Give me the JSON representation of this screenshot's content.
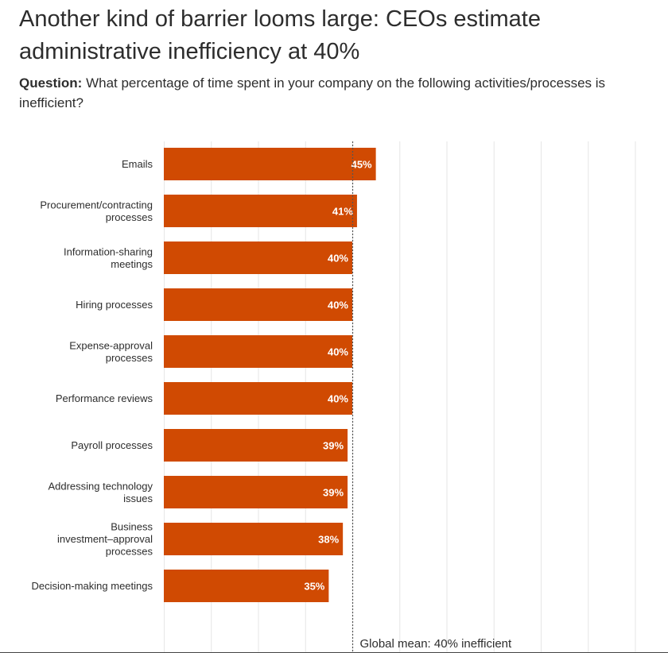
{
  "title": "Another kind of barrier looms large: CEOs estimate administrative inefficiency at 40%",
  "subtitle": {
    "label": "Question:",
    "text": "What percentage of time spent in your company on the following activities/processes is inefficient?"
  },
  "colors": {
    "bar": "#d04a02",
    "grid": "#e6e6e6",
    "mean_line": "#555555",
    "value_text": "#ffffff"
  },
  "chart_data": {
    "type": "bar",
    "orientation": "horizontal",
    "title": "Another kind of barrier looms large: CEOs estimate administrative inefficiency at 40%",
    "xlabel": "",
    "ylabel": "",
    "xlim": [
      0,
      100
    ],
    "grid": true,
    "categories": [
      [
        "Emails"
      ],
      [
        "Procurement/contracting",
        "processes"
      ],
      [
        "Information-sharing",
        "meetings"
      ],
      [
        "Hiring processes"
      ],
      [
        "Expense-approval",
        "processes"
      ],
      [
        "Performance reviews"
      ],
      [
        "Payroll processes"
      ],
      [
        "Addressing technology",
        "issues"
      ],
      [
        "Business",
        "investment–approval",
        "processes"
      ],
      [
        "Decision-making meetings"
      ]
    ],
    "values": [
      45,
      41,
      40,
      40,
      40,
      40,
      39,
      39,
      38,
      35
    ],
    "value_labels": [
      "45%",
      "41%",
      "40%",
      "40%",
      "40%",
      "40%",
      "39%",
      "39%",
      "38%",
      "35%"
    ],
    "reference_line": {
      "value": 40,
      "label": "Global mean: 40% inefficient"
    }
  }
}
